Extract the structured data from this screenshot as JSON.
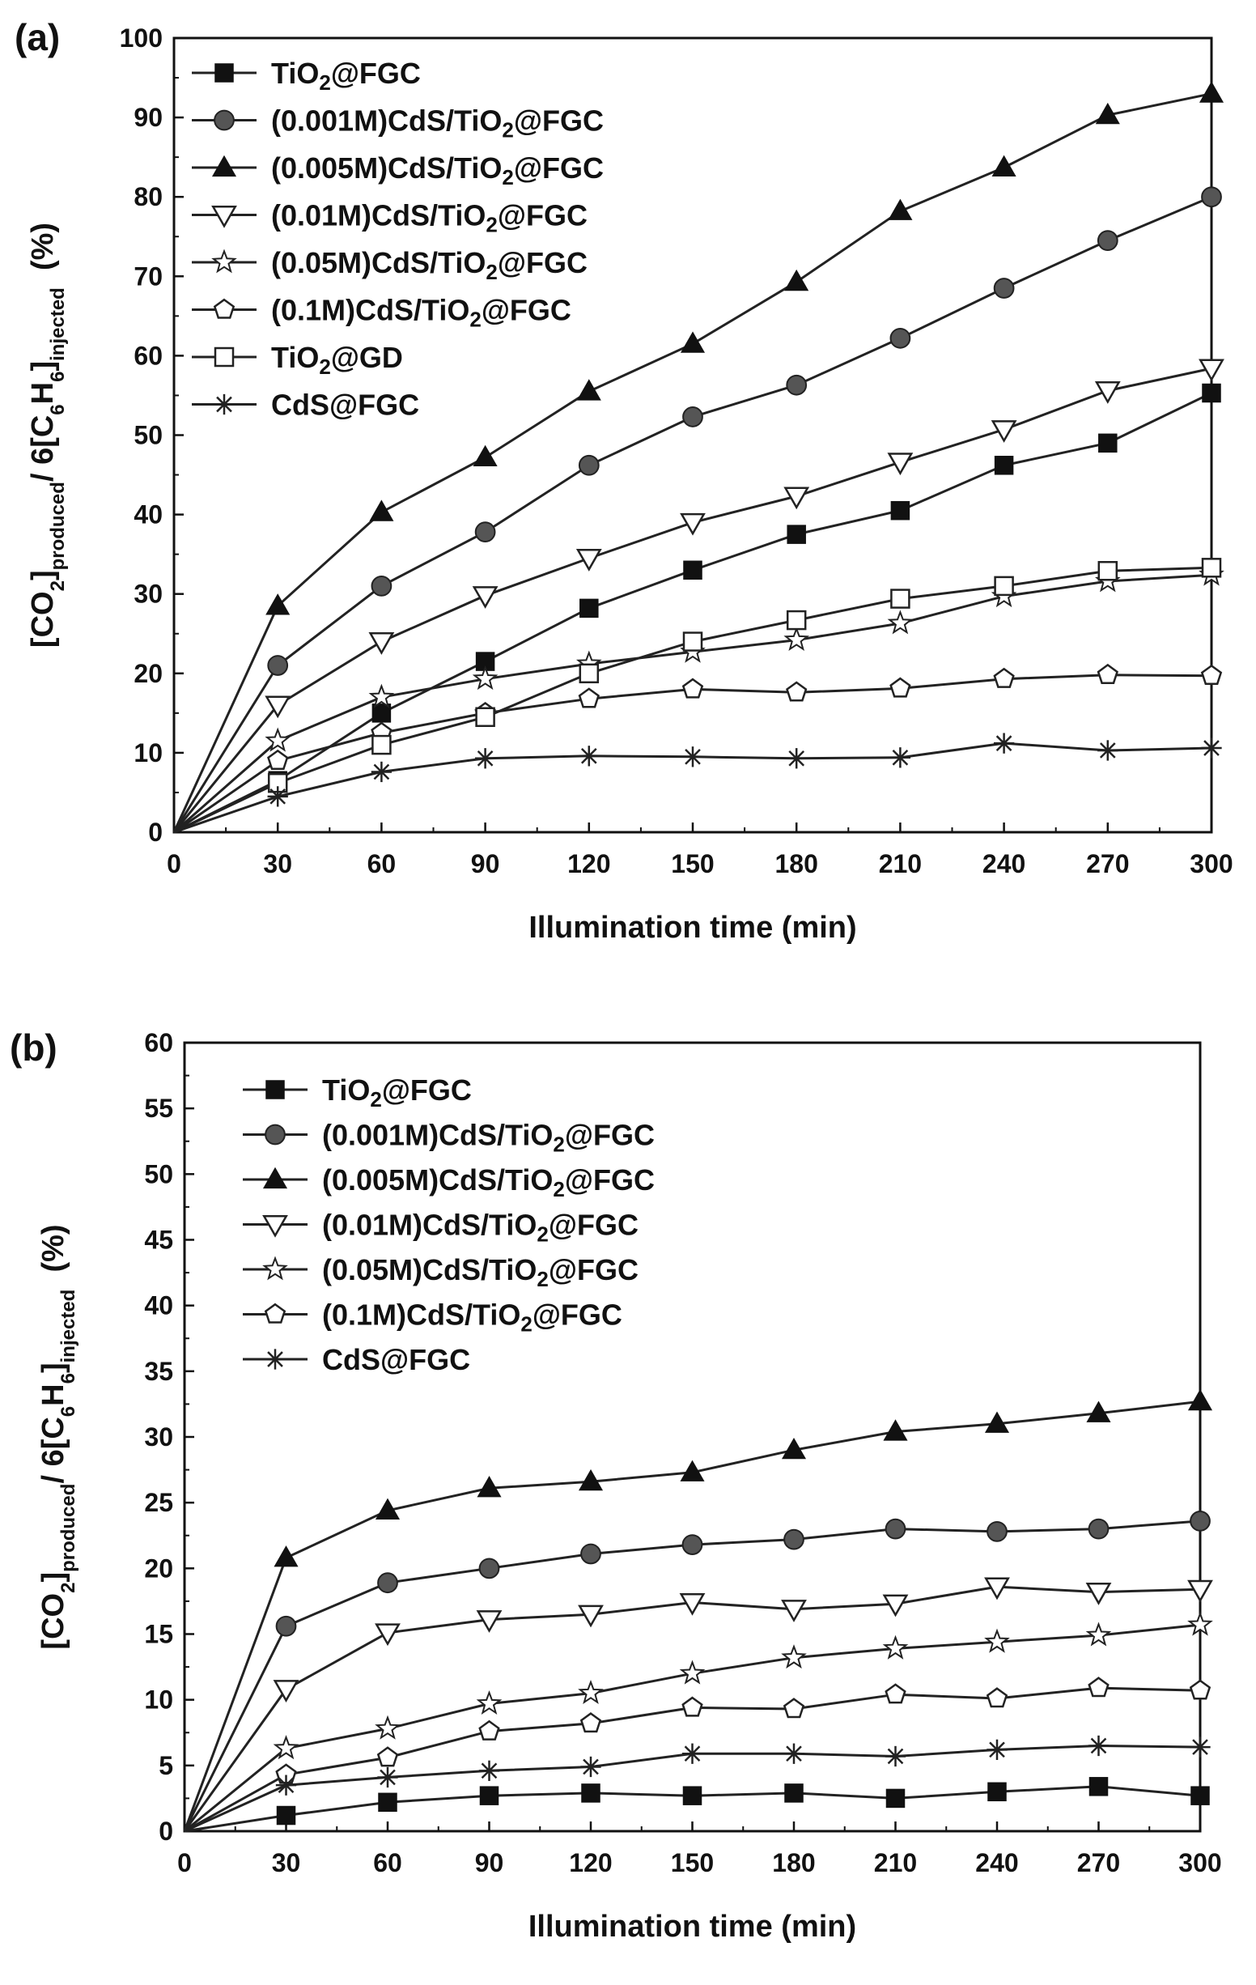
{
  "series_styles": [
    {
      "name": "TiO2@FGC",
      "marker": "square-filled"
    },
    {
      "name": "(0.001M)CdS/TiO2@FGC",
      "marker": "circle-filled"
    },
    {
      "name": "(0.005M)CdS/TiO2@FGC",
      "marker": "triangle-up-filled"
    },
    {
      "name": "(0.01M)CdS/TiO2@FGC",
      "marker": "triangle-down-open"
    },
    {
      "name": "(0.05M)CdS/TiO2@FGC",
      "marker": "star-open"
    },
    {
      "name": "(0.1M)CdS/TiO2@FGC",
      "marker": "pentagon-open"
    },
    {
      "name": "TiO2@GD",
      "marker": "square-open"
    },
    {
      "name": "CdS@FGC",
      "marker": "asterisk"
    }
  ],
  "ylabel_parts": {
    "lb": "[CO",
    "sub2": "2",
    "rb": "]",
    "produced": "produced",
    "mid": "/ 6[C",
    "sub6a": "6",
    "h": "H",
    "sub6b": "6",
    "rb2": "]",
    "injected": "injected",
    "pct": "(%)"
  },
  "chart_data": [
    {
      "panel": "(a)",
      "type": "line",
      "xlabel": "Illumination time (min)",
      "ylabel": "[CO2]produced / 6[C6H6]injected (%)",
      "xlim": [
        0,
        300
      ],
      "ylim": [
        0,
        100
      ],
      "xticks": [
        0,
        30,
        60,
        90,
        120,
        150,
        180,
        210,
        240,
        270,
        300
      ],
      "yticks": [
        0,
        10,
        20,
        30,
        40,
        50,
        60,
        70,
        80,
        90,
        100
      ],
      "legend_position": "top-left",
      "x": [
        0,
        30,
        60,
        90,
        120,
        150,
        180,
        210,
        240,
        270,
        300
      ],
      "series": [
        {
          "name": "TiO2@FGC",
          "legend_sub": [
            "TiO",
            "2",
            "@FGC"
          ],
          "values": [
            0,
            6.5,
            15,
            21.5,
            28.2,
            33,
            37.5,
            40.5,
            46.2,
            49,
            55.3
          ]
        },
        {
          "name": "(0.001M)CdS/TiO2@FGC",
          "legend_sub": [
            "(0.001M)CdS/TiO",
            "2",
            "@FGC"
          ],
          "values": [
            0,
            21,
            31,
            37.8,
            46.2,
            52.3,
            56.3,
            62.2,
            68.5,
            74.5,
            80
          ]
        },
        {
          "name": "(0.005M)CdS/TiO2@FGC",
          "legend_sub": [
            "(0.005M)CdS/TiO",
            "2",
            "@FGC"
          ],
          "values": [
            0,
            28.5,
            40.3,
            47.2,
            55.5,
            61.5,
            69.3,
            78.2,
            83.7,
            90.3,
            93
          ]
        },
        {
          "name": "(0.01M)CdS/TiO2@FGC",
          "legend_sub": [
            "(0.01M)CdS/TiO",
            "2",
            "@FGC"
          ],
          "values": [
            0,
            16,
            24,
            29.8,
            34.5,
            39,
            42.3,
            46.6,
            50.7,
            55.6,
            58.4
          ]
        },
        {
          "name": "(0.05M)CdS/TiO2@FGC",
          "legend_sub": [
            "(0.05M)CdS/TiO",
            "2",
            "@FGC"
          ],
          "values": [
            0,
            11.5,
            17,
            19.3,
            21.2,
            22.7,
            24.2,
            26.3,
            29.7,
            31.6,
            32.4
          ]
        },
        {
          "name": "(0.1M)CdS/TiO2@FGC",
          "legend_sub": [
            "(0.1M)CdS/TiO",
            "2",
            "@FGC"
          ],
          "values": [
            0,
            9,
            12.5,
            15,
            16.8,
            18,
            17.6,
            18.1,
            19.3,
            19.8,
            19.7
          ]
        },
        {
          "name": "TiO2@GD",
          "legend_sub": [
            "TiO",
            "2",
            "@GD"
          ],
          "values": [
            0,
            6.2,
            11,
            14.5,
            20,
            24,
            26.7,
            29.4,
            31,
            32.9,
            33.3
          ]
        },
        {
          "name": "CdS@FGC",
          "legend_sub": [
            "CdS@FGC",
            "",
            ""
          ],
          "values": [
            0,
            4.5,
            7.6,
            9.3,
            9.6,
            9.5,
            9.3,
            9.4,
            11.2,
            10.3,
            10.6
          ]
        }
      ]
    },
    {
      "panel": "(b)",
      "type": "line",
      "xlabel": "Illumination time (min)",
      "ylabel": "[CO2]produced / 6[C6H6]injected (%)",
      "xlim": [
        0,
        300
      ],
      "ylim": [
        0,
        60
      ],
      "xticks": [
        0,
        30,
        60,
        90,
        120,
        150,
        180,
        210,
        240,
        270,
        300
      ],
      "yticks": [
        0,
        5,
        10,
        15,
        20,
        25,
        30,
        35,
        40,
        45,
        50,
        55,
        60
      ],
      "legend_position": "top-left",
      "x": [
        0,
        30,
        60,
        90,
        120,
        150,
        180,
        210,
        240,
        270,
        300
      ],
      "series": [
        {
          "name": "TiO2@FGC",
          "legend_sub": [
            "TiO",
            "2",
            "@FGC"
          ],
          "values": [
            0,
            1.2,
            2.2,
            2.7,
            2.9,
            2.7,
            2.9,
            2.5,
            3.0,
            3.4,
            2.7
          ]
        },
        {
          "name": "(0.001M)CdS/TiO2@FGC",
          "legend_sub": [
            "(0.001M)CdS/TiO",
            "2",
            "@FGC"
          ],
          "values": [
            0,
            15.6,
            18.9,
            20,
            21.1,
            21.8,
            22.2,
            23,
            22.8,
            23,
            23.6
          ]
        },
        {
          "name": "(0.005M)CdS/TiO2@FGC",
          "legend_sub": [
            "(0.005M)CdS/TiO",
            "2",
            "@FGC"
          ],
          "values": [
            0,
            20.8,
            24.4,
            26.1,
            26.6,
            27.3,
            29,
            30.4,
            31,
            31.8,
            32.7
          ]
        },
        {
          "name": "(0.01M)CdS/TiO2@FGC",
          "legend_sub": [
            "(0.01M)CdS/TiO",
            "2",
            "@FGC"
          ],
          "values": [
            0,
            10.8,
            15.1,
            16.1,
            16.5,
            17.4,
            16.9,
            17.3,
            18.6,
            18.2,
            18.4
          ]
        },
        {
          "name": "(0.05M)CdS/TiO2@FGC",
          "legend_sub": [
            "(0.05M)CdS/TiO",
            "2",
            "@FGC"
          ],
          "values": [
            0,
            6.3,
            7.8,
            9.7,
            10.5,
            12,
            13.2,
            13.9,
            14.4,
            14.9,
            15.7
          ]
        },
        {
          "name": "(0.1M)CdS/TiO2@FGC",
          "legend_sub": [
            "(0.1M)CdS/TiO",
            "2",
            "@FGC"
          ],
          "values": [
            0,
            4.3,
            5.6,
            7.6,
            8.2,
            9.4,
            9.3,
            10.4,
            10.1,
            10.9,
            10.7
          ]
        },
        {
          "name": "CdS@FGC",
          "legend_sub": [
            "CdS@FGC",
            "",
            ""
          ],
          "values": [
            0,
            3.5,
            4.1,
            4.6,
            4.9,
            5.9,
            5.9,
            5.7,
            6.2,
            6.5,
            6.4
          ]
        }
      ]
    }
  ]
}
